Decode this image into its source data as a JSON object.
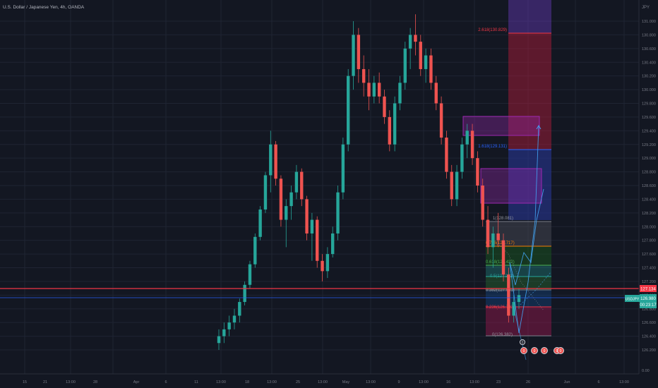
{
  "header": {
    "title": "U.S. Dollar / Japanese Yen, 4h, OANDA",
    "currency": "JPY"
  },
  "colors": {
    "background": "#131722",
    "up": "#26a69a",
    "down": "#ef5350",
    "red_line": "#f23645",
    "blue_line": "#2962ff",
    "axis_text": "#787b86"
  },
  "price_axis": {
    "labels": [
      "131.000",
      "130.800",
      "130.600",
      "130.400",
      "130.200",
      "130.000",
      "129.800",
      "129.600",
      "129.400",
      "129.200",
      "129.000",
      "128.800",
      "128.600",
      "128.400",
      "128.200",
      "128.000",
      "127.800",
      "127.600",
      "127.400",
      "127.200",
      "127.000",
      "126.800",
      "126.600",
      "126.400",
      "126.200",
      "0.00"
    ]
  },
  "price_tags": {
    "red_level": "127.134",
    "symbol": "USDJPY",
    "current_price": "126.980",
    "countdown": "00:23:17"
  },
  "time_axis": {
    "labels": [
      "15",
      "21",
      "13:00",
      "28",
      "Apr",
      "6",
      "11",
      "13:00",
      "18",
      "13:00",
      "25",
      "13:00",
      "May",
      "13:00",
      "9",
      "13:00",
      "16",
      "13:00",
      "23",
      "26",
      "Jun",
      "6",
      "13:00"
    ]
  },
  "fib_upper": {
    "label_2618": "2.618(130.829)",
    "label_1618": "1.618(129.131)"
  },
  "fib_lower": {
    "label_1": "1(128.081)",
    "label_0786": "0.786(127.717)",
    "label_0618": "0.618(127.432)",
    "label_05": "0.5(127.232)",
    "label_0382": "0.382(127.031)",
    "label_0236": "0.236(126.783)",
    "label_0": "0(126.382)"
  },
  "event_markers": [
    "0",
    "0",
    "0",
    "0",
    "0",
    "0"
  ],
  "chart_data": {
    "type": "candlestick",
    "title": "U.S. Dollar / Japanese Yen, 4h, OANDA",
    "ylim": [
      126.0,
      131.2
    ],
    "levels": {
      "red_horizontal": 127.134,
      "current_price": 126.98
    },
    "fib_extension": {
      "2.618": 130.829,
      "1.618": 129.131
    },
    "fib_retracement": {
      "1": 128.081,
      "0.786": 127.717,
      "0.618": 127.432,
      "0.5": 127.232,
      "0.382": 127.031,
      "0.236": 126.783,
      "0": 126.382
    },
    "ohlc": [
      [
        126.3,
        126.5,
        126.2,
        126.4
      ],
      [
        126.4,
        126.6,
        126.3,
        126.5
      ],
      [
        126.5,
        126.7,
        126.4,
        126.6
      ],
      [
        126.6,
        126.8,
        126.5,
        126.7
      ],
      [
        126.7,
        126.95,
        126.6,
        126.9
      ],
      [
        126.9,
        127.2,
        126.85,
        127.15
      ],
      [
        127.15,
        127.5,
        127.1,
        127.45
      ],
      [
        127.45,
        127.9,
        127.4,
        127.85
      ],
      [
        127.85,
        128.3,
        127.8,
        128.25
      ],
      [
        128.25,
        128.8,
        128.2,
        128.75
      ],
      [
        128.75,
        129.4,
        128.5,
        129.2
      ],
      [
        129.2,
        129.25,
        128.6,
        128.7
      ],
      [
        128.7,
        128.75,
        128.0,
        128.1
      ],
      [
        128.1,
        128.4,
        127.7,
        128.3
      ],
      [
        128.3,
        128.6,
        128.1,
        128.5
      ],
      [
        128.5,
        128.9,
        128.4,
        128.8
      ],
      [
        128.8,
        128.85,
        128.3,
        128.4
      ],
      [
        128.4,
        128.45,
        127.8,
        127.9
      ],
      [
        127.9,
        128.2,
        127.5,
        128.1
      ],
      [
        128.1,
        128.15,
        127.4,
        127.5
      ],
      [
        127.5,
        127.6,
        127.2,
        127.35
      ],
      [
        127.35,
        127.7,
        127.25,
        127.6
      ],
      [
        127.6,
        128.0,
        127.55,
        127.9
      ],
      [
        127.9,
        128.6,
        127.8,
        128.5
      ],
      [
        128.5,
        129.3,
        128.4,
        129.2
      ],
      [
        129.2,
        130.3,
        129.1,
        130.2
      ],
      [
        130.2,
        131.0,
        130.0,
        130.8
      ],
      [
        130.8,
        130.9,
        130.1,
        130.3
      ],
      [
        130.3,
        130.5,
        129.9,
        130.1
      ],
      [
        130.1,
        130.3,
        129.7,
        129.9
      ],
      [
        129.9,
        130.2,
        129.8,
        130.1
      ],
      [
        130.1,
        130.25,
        129.8,
        129.9
      ],
      [
        129.9,
        130.0,
        129.5,
        129.6
      ],
      [
        129.6,
        129.7,
        129.1,
        129.2
      ],
      [
        129.2,
        129.9,
        129.1,
        129.8
      ],
      [
        129.8,
        130.2,
        129.7,
        130.1
      ],
      [
        130.1,
        130.7,
        130.0,
        130.6
      ],
      [
        130.6,
        130.9,
        130.3,
        130.8
      ],
      [
        130.8,
        131.1,
        130.5,
        130.7
      ],
      [
        130.7,
        130.8,
        130.2,
        130.3
      ],
      [
        130.3,
        130.6,
        130.1,
        130.5
      ],
      [
        130.5,
        130.6,
        130.0,
        130.1
      ],
      [
        130.1,
        130.2,
        129.7,
        129.8
      ],
      [
        129.8,
        129.9,
        129.2,
        129.3
      ],
      [
        129.3,
        129.4,
        128.7,
        128.8
      ],
      [
        128.8,
        128.9,
        128.3,
        128.4
      ],
      [
        128.4,
        128.9,
        128.3,
        128.8
      ],
      [
        128.8,
        129.3,
        128.7,
        129.2
      ],
      [
        129.2,
        129.5,
        129.0,
        129.4
      ],
      [
        129.4,
        129.5,
        128.9,
        129.0
      ],
      [
        129.0,
        129.1,
        128.5,
        128.6
      ],
      [
        128.6,
        128.7,
        128.0,
        128.1
      ],
      [
        128.1,
        128.3,
        127.6,
        127.7
      ],
      [
        127.7,
        128.0,
        127.4,
        127.9
      ],
      [
        127.9,
        128.2,
        127.7,
        127.8
      ],
      [
        127.8,
        127.9,
        127.2,
        127.3
      ],
      [
        127.3,
        127.4,
        126.6,
        126.7
      ],
      [
        126.7,
        127.0,
        126.6,
        126.9
      ],
      [
        126.9,
        127.1,
        126.8,
        127.0
      ]
    ]
  }
}
